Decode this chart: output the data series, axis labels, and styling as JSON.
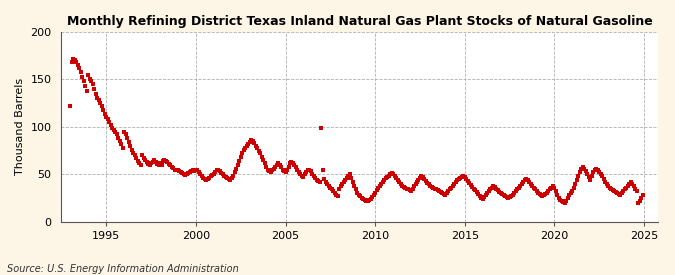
{
  "title": "Monthly Refining District Texas Inland Natural Gas Plant Stocks of Natural Gasoline",
  "ylabel": "Thousand Barrels",
  "source": "Source: U.S. Energy Information Administration",
  "figure_bg_color": "#fdf5e6",
  "axes_bg_color": "#ffffff",
  "dot_color": "#cc0000",
  "ylim": [
    0,
    200
  ],
  "yticks": [
    0,
    50,
    100,
    150,
    200
  ],
  "xlim_start": 1992.5,
  "xlim_end": 2025.8,
  "xticks": [
    1995,
    2000,
    2005,
    2010,
    2015,
    2020,
    2025
  ],
  "data": {
    "dates": [
      1993.0,
      1993.083,
      1993.167,
      1993.25,
      1993.333,
      1993.417,
      1993.5,
      1993.583,
      1993.667,
      1993.75,
      1993.833,
      1993.917,
      1994.0,
      1994.083,
      1994.167,
      1994.25,
      1994.333,
      1994.417,
      1994.5,
      1994.583,
      1994.667,
      1994.75,
      1994.833,
      1994.917,
      1995.0,
      1995.083,
      1995.167,
      1995.25,
      1995.333,
      1995.417,
      1995.5,
      1995.583,
      1995.667,
      1995.75,
      1995.833,
      1995.917,
      1996.0,
      1996.083,
      1996.167,
      1996.25,
      1996.333,
      1996.417,
      1996.5,
      1996.583,
      1996.667,
      1996.75,
      1996.833,
      1996.917,
      1997.0,
      1997.083,
      1997.167,
      1997.25,
      1997.333,
      1997.417,
      1997.5,
      1997.583,
      1997.667,
      1997.75,
      1997.833,
      1997.917,
      1998.0,
      1998.083,
      1998.167,
      1998.25,
      1998.333,
      1998.417,
      1998.5,
      1998.583,
      1998.667,
      1998.75,
      1998.833,
      1998.917,
      1999.0,
      1999.083,
      1999.167,
      1999.25,
      1999.333,
      1999.417,
      1999.5,
      1999.583,
      1999.667,
      1999.75,
      1999.833,
      1999.917,
      2000.0,
      2000.083,
      2000.167,
      2000.25,
      2000.333,
      2000.417,
      2000.5,
      2000.583,
      2000.667,
      2000.75,
      2000.833,
      2000.917,
      2001.0,
      2001.083,
      2001.167,
      2001.25,
      2001.333,
      2001.417,
      2001.5,
      2001.583,
      2001.667,
      2001.75,
      2001.833,
      2001.917,
      2002.0,
      2002.083,
      2002.167,
      2002.25,
      2002.333,
      2002.417,
      2002.5,
      2002.583,
      2002.667,
      2002.75,
      2002.833,
      2002.917,
      2003.0,
      2003.083,
      2003.167,
      2003.25,
      2003.333,
      2003.417,
      2003.5,
      2003.583,
      2003.667,
      2003.75,
      2003.833,
      2003.917,
      2004.0,
      2004.083,
      2004.167,
      2004.25,
      2004.333,
      2004.417,
      2004.5,
      2004.583,
      2004.667,
      2004.75,
      2004.833,
      2004.917,
      2005.0,
      2005.083,
      2005.167,
      2005.25,
      2005.333,
      2005.417,
      2005.5,
      2005.583,
      2005.667,
      2005.75,
      2005.833,
      2005.917,
      2006.0,
      2006.083,
      2006.167,
      2006.25,
      2006.333,
      2006.417,
      2006.5,
      2006.583,
      2006.667,
      2006.75,
      2006.833,
      2006.917,
      2007.0,
      2007.083,
      2007.167,
      2007.25,
      2007.333,
      2007.417,
      2007.5,
      2007.583,
      2007.667,
      2007.75,
      2007.833,
      2007.917,
      2008.0,
      2008.083,
      2008.167,
      2008.25,
      2008.333,
      2008.417,
      2008.5,
      2008.583,
      2008.667,
      2008.75,
      2008.833,
      2008.917,
      2009.0,
      2009.083,
      2009.167,
      2009.25,
      2009.333,
      2009.417,
      2009.5,
      2009.583,
      2009.667,
      2009.75,
      2009.833,
      2009.917,
      2010.0,
      2010.083,
      2010.167,
      2010.25,
      2010.333,
      2010.417,
      2010.5,
      2010.583,
      2010.667,
      2010.75,
      2010.833,
      2010.917,
      2011.0,
      2011.083,
      2011.167,
      2011.25,
      2011.333,
      2011.417,
      2011.5,
      2011.583,
      2011.667,
      2011.75,
      2011.833,
      2011.917,
      2012.0,
      2012.083,
      2012.167,
      2012.25,
      2012.333,
      2012.417,
      2012.5,
      2012.583,
      2012.667,
      2012.75,
      2012.833,
      2012.917,
      2013.0,
      2013.083,
      2013.167,
      2013.25,
      2013.333,
      2013.417,
      2013.5,
      2013.583,
      2013.667,
      2013.75,
      2013.833,
      2013.917,
      2014.0,
      2014.083,
      2014.167,
      2014.25,
      2014.333,
      2014.417,
      2014.5,
      2014.583,
      2014.667,
      2014.75,
      2014.833,
      2014.917,
      2015.0,
      2015.083,
      2015.167,
      2015.25,
      2015.333,
      2015.417,
      2015.5,
      2015.583,
      2015.667,
      2015.75,
      2015.833,
      2015.917,
      2016.0,
      2016.083,
      2016.167,
      2016.25,
      2016.333,
      2016.417,
      2016.5,
      2016.583,
      2016.667,
      2016.75,
      2016.833,
      2016.917,
      2017.0,
      2017.083,
      2017.167,
      2017.25,
      2017.333,
      2017.417,
      2017.5,
      2017.583,
      2017.667,
      2017.75,
      2017.833,
      2017.917,
      2018.0,
      2018.083,
      2018.167,
      2018.25,
      2018.333,
      2018.417,
      2018.5,
      2018.583,
      2018.667,
      2018.75,
      2018.833,
      2018.917,
      2019.0,
      2019.083,
      2019.167,
      2019.25,
      2019.333,
      2019.417,
      2019.5,
      2019.583,
      2019.667,
      2019.75,
      2019.833,
      2019.917,
      2020.0,
      2020.083,
      2020.167,
      2020.25,
      2020.333,
      2020.417,
      2020.5,
      2020.583,
      2020.667,
      2020.75,
      2020.833,
      2020.917,
      2021.0,
      2021.083,
      2021.167,
      2021.25,
      2021.333,
      2021.417,
      2021.5,
      2021.583,
      2021.667,
      2021.75,
      2021.833,
      2021.917,
      2022.0,
      2022.083,
      2022.167,
      2022.25,
      2022.333,
      2022.417,
      2022.5,
      2022.583,
      2022.667,
      2022.75,
      2022.833,
      2022.917,
      2023.0,
      2023.083,
      2023.167,
      2023.25,
      2023.333,
      2023.417,
      2023.5,
      2023.583,
      2023.667,
      2023.75,
      2023.833,
      2023.917,
      2024.0,
      2024.083,
      2024.167,
      2024.25,
      2024.333,
      2024.417,
      2024.5,
      2024.583,
      2024.667,
      2024.75,
      2024.833,
      2024.917
    ],
    "values": [
      122,
      168,
      172,
      170,
      168,
      165,
      162,
      158,
      152,
      148,
      143,
      138,
      155,
      150,
      148,
      145,
      140,
      135,
      130,
      128,
      125,
      122,
      118,
      113,
      110,
      108,
      105,
      102,
      99,
      97,
      95,
      92,
      88,
      85,
      82,
      78,
      95,
      92,
      88,
      84,
      80,
      76,
      72,
      70,
      67,
      64,
      62,
      60,
      70,
      67,
      65,
      63,
      61,
      60,
      62,
      63,
      65,
      63,
      61,
      60,
      62,
      60,
      64,
      65,
      64,
      63,
      61,
      60,
      58,
      57,
      55,
      54,
      55,
      53,
      52,
      51,
      50,
      49,
      50,
      51,
      52,
      53,
      54,
      53,
      55,
      54,
      52,
      50,
      48,
      46,
      45,
      44,
      45,
      46,
      48,
      49,
      50,
      52,
      54,
      55,
      53,
      51,
      50,
      48,
      47,
      46,
      45,
      44,
      46,
      48,
      52,
      56,
      60,
      64,
      68,
      72,
      76,
      78,
      80,
      82,
      84,
      86,
      85,
      83,
      80,
      78,
      75,
      72,
      68,
      65,
      62,
      58,
      55,
      53,
      52,
      54,
      56,
      58,
      60,
      62,
      60,
      58,
      55,
      53,
      52,
      55,
      58,
      62,
      63,
      62,
      60,
      58,
      55,
      52,
      50,
      48,
      47,
      50,
      52,
      54,
      55,
      53,
      50,
      48,
      46,
      44,
      43,
      42,
      99,
      55,
      45,
      42,
      40,
      38,
      36,
      34,
      32,
      30,
      28,
      27,
      35,
      38,
      40,
      42,
      44,
      46,
      48,
      50,
      46,
      42,
      38,
      34,
      30,
      28,
      27,
      25,
      24,
      23,
      22,
      22,
      23,
      24,
      26,
      28,
      30,
      33,
      36,
      38,
      40,
      42,
      44,
      46,
      47,
      48,
      50,
      51,
      50,
      48,
      46,
      44,
      42,
      40,
      38,
      37,
      36,
      35,
      34,
      33,
      32,
      35,
      38,
      40,
      42,
      44,
      46,
      48,
      47,
      45,
      43,
      41,
      40,
      38,
      37,
      36,
      35,
      34,
      33,
      32,
      31,
      30,
      29,
      28,
      30,
      32,
      34,
      36,
      38,
      40,
      42,
      44,
      45,
      46,
      47,
      48,
      47,
      45,
      43,
      41,
      39,
      37,
      35,
      33,
      31,
      29,
      27,
      25,
      24,
      26,
      28,
      30,
      32,
      34,
      36,
      38,
      37,
      35,
      33,
      31,
      30,
      29,
      28,
      27,
      26,
      25,
      26,
      27,
      28,
      30,
      32,
      34,
      36,
      38,
      40,
      42,
      44,
      45,
      44,
      42,
      40,
      38,
      36,
      34,
      32,
      30,
      29,
      28,
      27,
      28,
      29,
      30,
      32,
      34,
      36,
      38,
      36,
      32,
      28,
      25,
      23,
      22,
      21,
      20,
      22,
      25,
      28,
      30,
      32,
      36,
      40,
      44,
      48,
      52,
      56,
      58,
      56,
      53,
      50,
      47,
      44,
      48,
      52,
      55,
      56,
      54,
      52,
      50,
      48,
      45,
      42,
      40,
      38,
      36,
      34,
      33,
      32,
      31,
      30,
      29,
      28,
      30,
      32,
      34,
      36,
      38,
      40,
      42,
      40,
      38,
      35,
      32,
      20,
      22,
      25,
      28
    ]
  }
}
